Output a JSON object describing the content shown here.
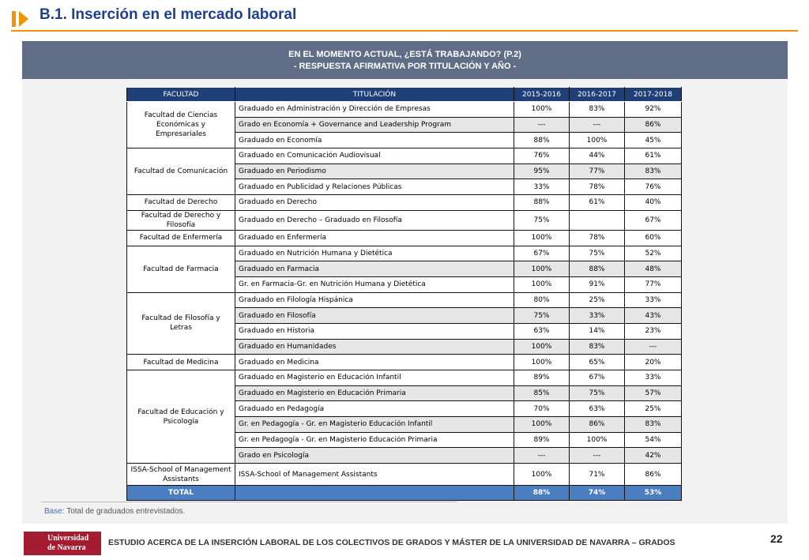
{
  "header": {
    "title": "B.1. Inserción en el mercado laboral"
  },
  "banner": {
    "line1": "EN EL MOMENTO ACTUAL, ¿ESTÁ TRABAJANDO? (P.2)",
    "line2": "- RESPUESTA AFIRMATIVA  POR TITULACIÓN  Y AÑO -"
  },
  "table": {
    "columns": [
      "FACULTAD",
      "TITULACIÓN",
      "2015-2016",
      "2016-2017",
      "2017-2018"
    ],
    "groups": [
      {
        "faculty": "Facultad de Ciencias Económicas y Empresariales",
        "rows": [
          [
            "Graduado en Administración y Dirección de Empresas",
            "100%",
            "83%",
            "92%"
          ],
          [
            "Grado en Economía + Governance and Leadership Program",
            "---",
            "---",
            "86%"
          ],
          [
            "Graduado en Economía",
            "88%",
            "100%",
            "45%"
          ]
        ]
      },
      {
        "faculty": "Facultad de Comunicación",
        "rows": [
          [
            "Graduado en Comunicación Audiovisual",
            "76%",
            "44%",
            "61%"
          ],
          [
            "Graduado en Periodismo",
            "95%",
            "77%",
            "83%"
          ],
          [
            "Graduado en Publicidad y Relaciones Públicas",
            "33%",
            "78%",
            "76%"
          ]
        ]
      },
      {
        "faculty": "Facultad de Derecho",
        "rows": [
          [
            "Graduado en Derecho",
            "88%",
            "61%",
            "40%"
          ]
        ]
      },
      {
        "faculty": "Facultad de Derecho y Filosofía",
        "rows": [
          [
            "Graduado en Derecho – Graduado en Filosofía",
            "75%",
            null,
            "67%"
          ]
        ]
      },
      {
        "faculty": "Facultad de Enfermería",
        "rows": [
          [
            "Graduado en Enfermería",
            "100%",
            "78%",
            "60%"
          ]
        ]
      },
      {
        "faculty": "Facultad de Farmacia",
        "rows": [
          [
            "Graduado en Nutrición Humana y Dietética",
            "67%",
            "75%",
            "52%"
          ],
          [
            "Graduado en Farmacia",
            "100%",
            "88%",
            "48%"
          ],
          [
            "Gr. en Farmacia-Gr. en Nutrición Humana y Dietética",
            "100%",
            "91%",
            "77%"
          ]
        ]
      },
      {
        "faculty": "Facultad de Filosofía y Letras",
        "rows": [
          [
            "Graduado en Filología Hispánica",
            "80%",
            "25%",
            "33%"
          ],
          [
            "Graduado en Filosofía",
            "75%",
            "33%",
            "43%"
          ],
          [
            "Graduado en Historia",
            "63%",
            "14%",
            "23%"
          ],
          [
            "Graduado en Humanidades",
            "100%",
            "83%",
            "---"
          ]
        ]
      },
      {
        "faculty": "Facultad de Medicina",
        "rows": [
          [
            "Graduado en Medicina",
            "100%",
            "65%",
            "20%"
          ]
        ]
      },
      {
        "faculty": "Facultad de Educación y Psicología",
        "rows": [
          [
            "Graduado en Magisterio en Educación Infantil",
            "89%",
            "67%",
            "33%"
          ],
          [
            "Graduado en Magisterio en Educación Primaria",
            "85%",
            "75%",
            "57%"
          ],
          [
            "Graduado en Pedagogía",
            "70%",
            "63%",
            "25%"
          ],
          [
            "Gr. en Pedagogía - Gr. en Magisterio Educación Infantil",
            "100%",
            "86%",
            "83%"
          ],
          [
            "Gr. en Pedagogía - Gr. en Magisterio Educación Primaria",
            "89%",
            "100%",
            "54%"
          ],
          [
            "Grado en Psicología",
            "---",
            "---",
            "42%"
          ]
        ]
      },
      {
        "faculty": "ISSA-School of Management Assistants",
        "rows": [
          [
            "ISSA-School of Management Assistants",
            "100%",
            "71%",
            "86%"
          ]
        ]
      }
    ],
    "total": {
      "label": "TOTAL",
      "values": [
        "88%",
        "74%",
        "53%"
      ]
    }
  },
  "base": {
    "label": "Base:",
    "text": "Total de graduados entrevistados."
  },
  "footer": {
    "logo": "Universidad de Navarra",
    "text": "ESTUDIO ACERCA DE LA INSERCIÓN LABORAL DE LOS COLECTIVOS DE GRADOS Y MÁSTER DE LA UNIVERSIDAD DE NAVARRA – GRADOS",
    "page": "22"
  }
}
